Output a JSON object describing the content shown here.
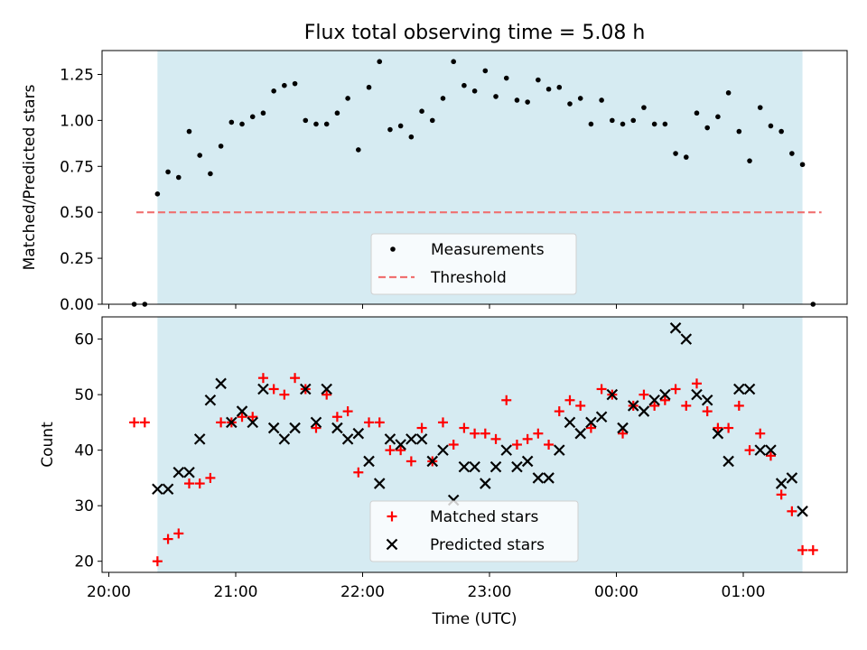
{
  "chart_data": [
    {
      "type": "scatter",
      "title": "Flux total observing time = 5.08 h",
      "xlabel": "",
      "ylabel": "Matched/Predicted stars",
      "ylim": [
        0,
        1.38
      ],
      "yticks": [
        "0.00",
        "0.25",
        "0.50",
        "0.75",
        "1.00",
        "1.25"
      ],
      "threshold": 0.5,
      "legend_position": "lower center",
      "series": [
        {
          "name": "Measurements",
          "color": "#000000",
          "marker": "dot",
          "x": [
            "20:12",
            "20:17",
            "20:23",
            "20:28",
            "20:33",
            "20:38",
            "20:43",
            "20:48",
            "20:53",
            "20:58",
            "21:03",
            "21:08",
            "21:13",
            "21:18",
            "21:23",
            "21:28",
            "21:33",
            "21:38",
            "21:43",
            "21:48",
            "21:53",
            "21:58",
            "22:03",
            "22:08",
            "22:13",
            "22:18",
            "22:23",
            "22:28",
            "22:33",
            "22:38",
            "22:43",
            "22:48",
            "22:53",
            "22:58",
            "23:03",
            "23:08",
            "23:13",
            "23:18",
            "23:23",
            "23:28",
            "23:33",
            "23:38",
            "23:43",
            "23:48",
            "23:53",
            "23:58",
            "00:03",
            "00:08",
            "00:13",
            "00:18",
            "00:23",
            "00:28",
            "00:33",
            "00:38",
            "00:43",
            "00:48",
            "00:53",
            "00:58",
            "01:03",
            "01:08",
            "01:13",
            "01:18",
            "01:23",
            "01:28",
            "01:33"
          ],
          "y": [
            0.0,
            0.0,
            0.6,
            0.72,
            0.69,
            0.94,
            0.81,
            0.71,
            0.86,
            0.99,
            0.98,
            1.02,
            1.04,
            1.16,
            1.19,
            1.2,
            1.0,
            0.98,
            0.98,
            1.04,
            1.12,
            0.84,
            1.18,
            1.32,
            0.95,
            0.97,
            0.91,
            1.05,
            1.0,
            1.12,
            1.32,
            1.19,
            1.16,
            1.27,
            1.13,
            1.23,
            1.11,
            1.1,
            1.22,
            1.17,
            1.18,
            1.09,
            1.12,
            0.98,
            1.11,
            1.0,
            0.98,
            1.0,
            1.07,
            0.98,
            0.98,
            0.82,
            0.8,
            1.04,
            0.96,
            1.02,
            1.15,
            0.94,
            0.78,
            1.07,
            0.97,
            0.94,
            0.82,
            0.76,
            0.0
          ]
        },
        {
          "name": "Threshold",
          "color": "#f07070",
          "style": "dashed",
          "x": [
            "20:13",
            "01:37"
          ],
          "y": [
            0.5,
            0.5
          ]
        }
      ]
    },
    {
      "type": "scatter",
      "title": "",
      "xlabel": "Time (UTC)",
      "ylabel": "Count",
      "ylim": [
        18,
        64
      ],
      "yticks": [
        "20",
        "30",
        "40",
        "50",
        "60"
      ],
      "xticks": [
        "20:00",
        "21:00",
        "22:00",
        "23:00",
        "00:00",
        "01:00"
      ],
      "shaded_interval": [
        "20:23",
        "01:28"
      ],
      "shaded_color": "#add8e6",
      "legend_position": "lower center",
      "series": [
        {
          "name": "Matched stars",
          "color": "#ff0000",
          "marker": "plus",
          "x": [
            "20:12",
            "20:17",
            "20:23",
            "20:28",
            "20:33",
            "20:38",
            "20:43",
            "20:48",
            "20:53",
            "20:58",
            "21:03",
            "21:08",
            "21:13",
            "21:18",
            "21:23",
            "21:28",
            "21:33",
            "21:38",
            "21:43",
            "21:48",
            "21:53",
            "21:58",
            "22:03",
            "22:08",
            "22:13",
            "22:18",
            "22:23",
            "22:28",
            "22:33",
            "22:38",
            "22:43",
            "22:48",
            "22:53",
            "22:58",
            "23:03",
            "23:08",
            "23:13",
            "23:18",
            "23:23",
            "23:28",
            "23:33",
            "23:38",
            "23:43",
            "23:48",
            "23:53",
            "23:58",
            "00:03",
            "00:08",
            "00:13",
            "00:18",
            "00:23",
            "00:28",
            "00:33",
            "00:38",
            "00:43",
            "00:48",
            "00:53",
            "00:58",
            "01:03",
            "01:08",
            "01:13",
            "01:18",
            "01:23",
            "01:28",
            "01:33"
          ],
          "y": [
            45,
            45,
            20,
            24,
            25,
            34,
            34,
            35,
            45,
            45,
            46,
            46,
            53,
            51,
            50,
            53,
            51,
            44,
            50,
            46,
            47,
            36,
            45,
            45,
            40,
            40,
            38,
            44,
            38,
            45,
            41,
            44,
            43,
            43,
            42,
            49,
            41,
            42,
            43,
            41,
            47,
            49,
            48,
            44,
            51,
            50,
            43,
            48,
            50,
            48,
            49,
            51,
            48,
            52,
            47,
            44,
            44,
            48,
            40,
            43,
            39,
            32,
            29,
            22,
            22
          ]
        },
        {
          "name": "Predicted stars",
          "color": "#000000",
          "marker": "x",
          "x": [
            "20:23",
            "20:28",
            "20:33",
            "20:38",
            "20:43",
            "20:48",
            "20:53",
            "20:58",
            "21:03",
            "21:08",
            "21:13",
            "21:18",
            "21:23",
            "21:28",
            "21:33",
            "21:38",
            "21:43",
            "21:48",
            "21:53",
            "21:58",
            "22:03",
            "22:08",
            "22:13",
            "22:18",
            "22:23",
            "22:28",
            "22:33",
            "22:38",
            "22:43",
            "22:48",
            "22:53",
            "22:58",
            "23:03",
            "23:08",
            "23:13",
            "23:18",
            "23:23",
            "23:28",
            "23:33",
            "23:38",
            "23:43",
            "23:48",
            "23:53",
            "23:58",
            "00:03",
            "00:08",
            "00:13",
            "00:18",
            "00:23",
            "00:28",
            "00:33",
            "00:38",
            "00:43",
            "00:48",
            "00:53",
            "00:58",
            "01:03",
            "01:08",
            "01:13",
            "01:18",
            "01:23",
            "01:28"
          ],
          "y": [
            33,
            33,
            36,
            36,
            42,
            49,
            52,
            45,
            47,
            45,
            51,
            44,
            42,
            44,
            51,
            45,
            51,
            44,
            42,
            43,
            38,
            34,
            42,
            41,
            42,
            42,
            38,
            40,
            31,
            37,
            37,
            34,
            37,
            40,
            37,
            38,
            35,
            35,
            40,
            45,
            43,
            45,
            46,
            50,
            44,
            48,
            47,
            49,
            50,
            62,
            60,
            50,
            49,
            43,
            38,
            51,
            51,
            40,
            40,
            34,
            35,
            29
          ]
        }
      ]
    }
  ]
}
